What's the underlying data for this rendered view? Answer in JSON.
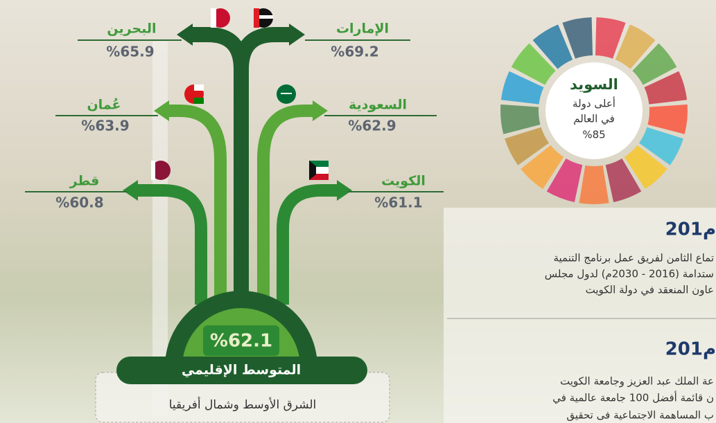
{
  "countries": [
    {
      "name": "البحرين",
      "value": "%65.9"
    },
    {
      "name": "الإمارات",
      "value": "%69.2"
    },
    {
      "name": "عُمان",
      "value": "%63.9"
    },
    {
      "name": "السعودية",
      "value": "%62.9"
    },
    {
      "name": "قطر",
      "value": "%60.8"
    },
    {
      "name": "الكويت",
      "value": "%61.1"
    }
  ],
  "regional": {
    "value": "%62.1",
    "label": "المتوسط الإقليمي",
    "region": "الشرق الأوسط وشمال أفريقيا"
  },
  "top_country": {
    "name": "السويد",
    "line1": "أعلى دولة",
    "line2": "في العالم",
    "value": "%85"
  },
  "events": [
    {
      "year": "201م",
      "lines": [
        "تماع الثامن لفريق عمل برنامج التنمية",
        "ستدامة (2016 - 2030م) لدول مجلس",
        "عاون المنعقد في دولة الكويت"
      ]
    },
    {
      "year": "201م",
      "lines": [
        "عة الملك عبد العزيز وجامعة الكويت",
        "ن قائمة أفضل 100 جامعة عالمية في",
        "ب المساهمة الاجتماعية فى تحقيق"
      ]
    }
  ]
}
